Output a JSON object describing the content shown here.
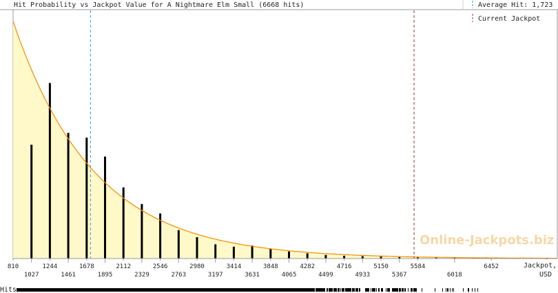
{
  "chart_data": {
    "type": "bar",
    "title": "Hit Probability vs Jackpot Value for A Nightmare Elm Small (6668 hits)",
    "xlabel": "Jackpot, USD",
    "xlim": [
      810,
      7230
    ],
    "ylim": [
      0,
      1
    ],
    "legend": {
      "average_label": "Average Hit: 1,723",
      "current_label": "Current Jackpot"
    },
    "average_hit": 1723,
    "current_jackpot": 5540,
    "ticks_upper": [
      "810",
      "1244",
      "1678",
      "2112",
      "2546",
      "2980",
      "3414",
      "3848",
      "4282",
      "4716",
      "5150",
      "5584",
      "6452"
    ],
    "ticks_lower": [
      "1027",
      "1461",
      "1895",
      "2329",
      "2763",
      "3197",
      "3631",
      "4065",
      "4499",
      "4933",
      "5367",
      "6018"
    ],
    "bars": {
      "x": [
        1027,
        1244,
        1461,
        1678,
        1895,
        2112,
        2329,
        2546,
        2763,
        2980,
        3197,
        3414,
        3631,
        3848,
        4065,
        4282,
        4499,
        4716,
        4933,
        5150,
        5367,
        5584,
        5801,
        6018,
        6235,
        6452,
        6669,
        6886,
        7103
      ],
      "y": [
        0.48,
        0.74,
        0.53,
        0.51,
        0.43,
        0.3,
        0.23,
        0.19,
        0.12,
        0.09,
        0.06,
        0.05,
        0.055,
        0.04,
        0.03,
        0.022,
        0.015,
        0.012,
        0.01,
        0.008,
        0.006,
        0.005,
        0.004,
        0.003,
        0.003,
        0.002,
        0.002,
        0.002,
        0.001
      ]
    },
    "curve": {
      "start_value": 1.0,
      "decay_per_usd": 0.00105
    },
    "colors": {
      "fill": "#fff8c8",
      "curve": "#f08c00",
      "bar": "#000000",
      "average_line": "#3399cc",
      "current_line": "#993333"
    },
    "grid": false
  },
  "hits_label": "Hits",
  "watermark": "Online-Jackpots.biz"
}
